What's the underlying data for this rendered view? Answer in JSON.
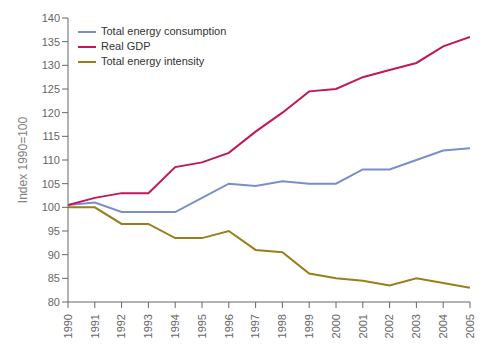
{
  "chart_data": {
    "type": "line",
    "x": [
      1990,
      1991,
      1992,
      1993,
      1994,
      1995,
      1996,
      1997,
      1998,
      1999,
      2000,
      2001,
      2002,
      2003,
      2004,
      2005
    ],
    "series": [
      {
        "name": "Total energy consumption",
        "color": "#7B8EC8",
        "values": [
          100.5,
          101.0,
          99.0,
          99.0,
          99.0,
          102.0,
          105.0,
          104.5,
          105.5,
          105.0,
          105.0,
          108.0,
          108.0,
          110.0,
          112.0,
          112.5
        ]
      },
      {
        "name": "Real GDP",
        "color": "#C2185B",
        "values": [
          100.5,
          102.0,
          103.0,
          103.0,
          108.5,
          109.5,
          111.5,
          116.0,
          120.0,
          124.5,
          125.0,
          127.5,
          129.0,
          130.5,
          134.0,
          136.0
        ]
      },
      {
        "name": "Total energy intensity",
        "color": "#9B7D1A",
        "values": [
          100.0,
          100.0,
          96.5,
          96.5,
          93.5,
          93.5,
          95.0,
          91.0,
          90.5,
          86.0,
          85.0,
          84.5,
          83.5,
          85.0,
          84.0,
          83.0
        ]
      }
    ],
    "ylabel": "Index 1990=100",
    "xlim": [
      1990,
      2005
    ],
    "xticks": [
      1990,
      1991,
      1992,
      1993,
      1994,
      1995,
      1996,
      1997,
      1998,
      1999,
      2000,
      2001,
      2002,
      2003,
      2004,
      2005
    ],
    "ylim": [
      80,
      140
    ],
    "yticks": [
      80,
      85,
      90,
      95,
      100,
      105,
      110,
      115,
      120,
      125,
      130,
      135,
      140
    ],
    "grid": false,
    "legend": "upper left"
  }
}
